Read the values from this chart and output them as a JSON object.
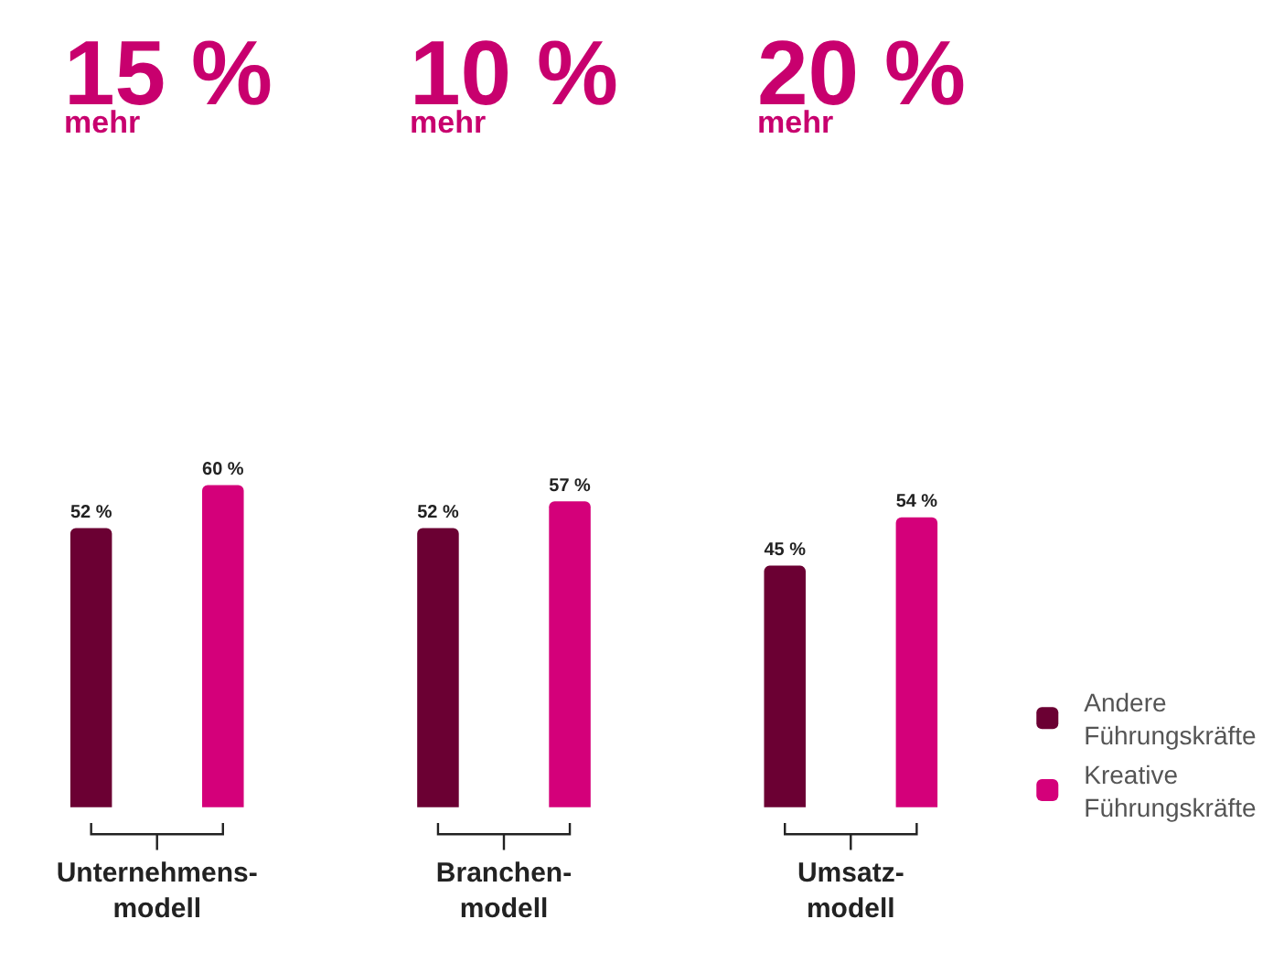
{
  "chart_data": {
    "type": "bar",
    "categories": [
      "Unternehmens-\nmodell",
      "Branchen-\nmodell",
      "Umsatz-\nmodell"
    ],
    "series": [
      {
        "name": "Andere\nFührungskräfte",
        "color": "#6b0033",
        "values": [
          52,
          52,
          45
        ],
        "value_labels": [
          "52 %",
          "52 %",
          "45 %"
        ]
      },
      {
        "name": "Kreative\nFührungskräfte",
        "color": "#d4007a",
        "values": [
          60,
          57,
          54
        ],
        "value_labels": [
          "60 %",
          "57 %",
          "54 %"
        ]
      }
    ],
    "annotations": [
      "15 %\nmehr",
      "10 %\nmehr",
      "20 %\nmehr"
    ],
    "legend": "bottom right"
  }
}
